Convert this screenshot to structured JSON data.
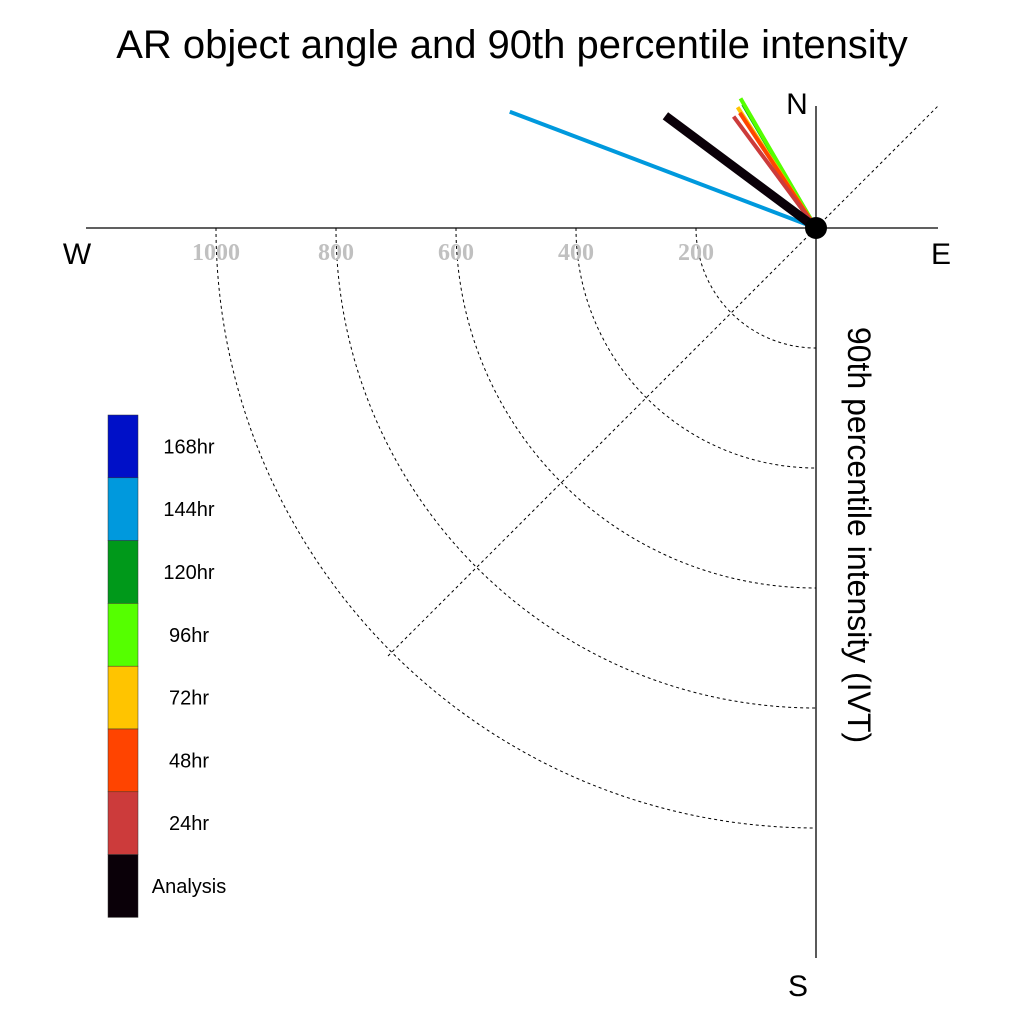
{
  "chart_data": {
    "type": "polar-vector",
    "title": "AR object angle and 90th percentile intensity",
    "ylabel": "90th percentile intensity (IVT)",
    "compass": {
      "north": "N",
      "south": "S",
      "east": "E",
      "west": "W"
    },
    "radial_ticks": [
      "1000",
      "800",
      "600",
      "400",
      "200"
    ],
    "radial_tick_values": [
      1000,
      800,
      600,
      400,
      200
    ],
    "radial_range": [
      0,
      1200
    ],
    "legend": [
      {
        "label": "168hr",
        "color": "#0010c8"
      },
      {
        "label": "144hr",
        "color": "#0099dd"
      },
      {
        "label": "120hr",
        "color": "#00991a"
      },
      {
        "label": "96hr",
        "color": "#55ff00"
      },
      {
        "label": "72hr",
        "color": "#ffc400"
      },
      {
        "label": "48hr",
        "color": "#ff4400"
      },
      {
        "label": "24hr",
        "color": "#cc3b3b"
      },
      {
        "label": "Analysis",
        "color": "#0a0008"
      }
    ],
    "series": [
      {
        "name": "144hr",
        "color": "#0099dd",
        "angle_deg": 290.8,
        "intensity": 546
      },
      {
        "name": "120hr",
        "color": "#00991a",
        "angle_deg": 329.5,
        "intensity": 239
      },
      {
        "name": "96hr",
        "color": "#55ff00",
        "angle_deg": 329.8,
        "intensity": 250
      },
      {
        "name": "72hr",
        "color": "#ffc400",
        "angle_deg": 327.0,
        "intensity": 240
      },
      {
        "name": "48hr",
        "color": "#ff4400",
        "angle_deg": 326.5,
        "intensity": 230
      },
      {
        "name": "24hr",
        "color": "#cc3b3b",
        "angle_deg": 323.5,
        "intensity": 231
      },
      {
        "name": "Analysis",
        "color": "#0a0008",
        "angle_deg": 306.7,
        "intensity": 313
      }
    ]
  }
}
